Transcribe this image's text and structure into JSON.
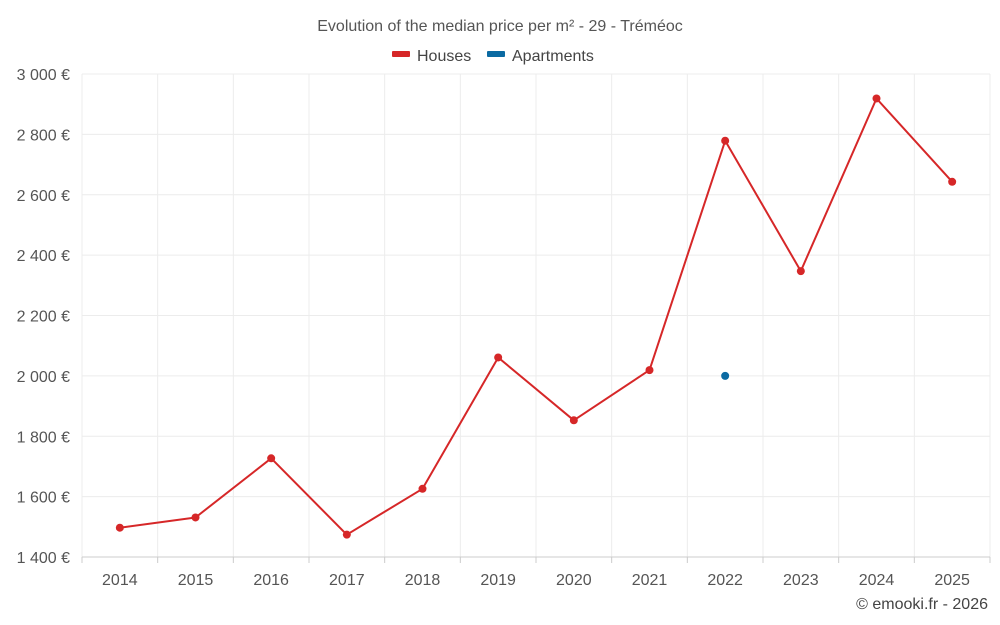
{
  "chart_data": {
    "type": "line",
    "title": "Evolution of the median price per m² - 29 - Tréméoc",
    "categories": [
      "2014",
      "2015",
      "2016",
      "2017",
      "2018",
      "2019",
      "2020",
      "2021",
      "2022",
      "2023",
      "2024",
      "2025"
    ],
    "series": [
      {
        "name": "Houses",
        "color": "#d62728",
        "values": [
          1497,
          1531,
          1727,
          1474,
          1626,
          2061,
          1853,
          2019,
          2779,
          2347,
          2919,
          2643
        ]
      },
      {
        "name": "Apartments",
        "color": "#0b6aa2",
        "values": [
          null,
          null,
          null,
          null,
          null,
          null,
          null,
          null,
          2000,
          null,
          null,
          null
        ]
      }
    ],
    "ylim": [
      1400,
      3000
    ],
    "yticks": [
      1400,
      1600,
      1800,
      2000,
      2200,
      2400,
      2600,
      2800,
      3000
    ],
    "ytick_labels": [
      "1 400 €",
      "1 600 €",
      "1 800 €",
      "2 000 €",
      "2 200 €",
      "2 400 €",
      "2 600 €",
      "2 800 €",
      "3 000 €"
    ],
    "grid": true,
    "legend": "top-center"
  },
  "credit": "© emooki.fr - 2026"
}
